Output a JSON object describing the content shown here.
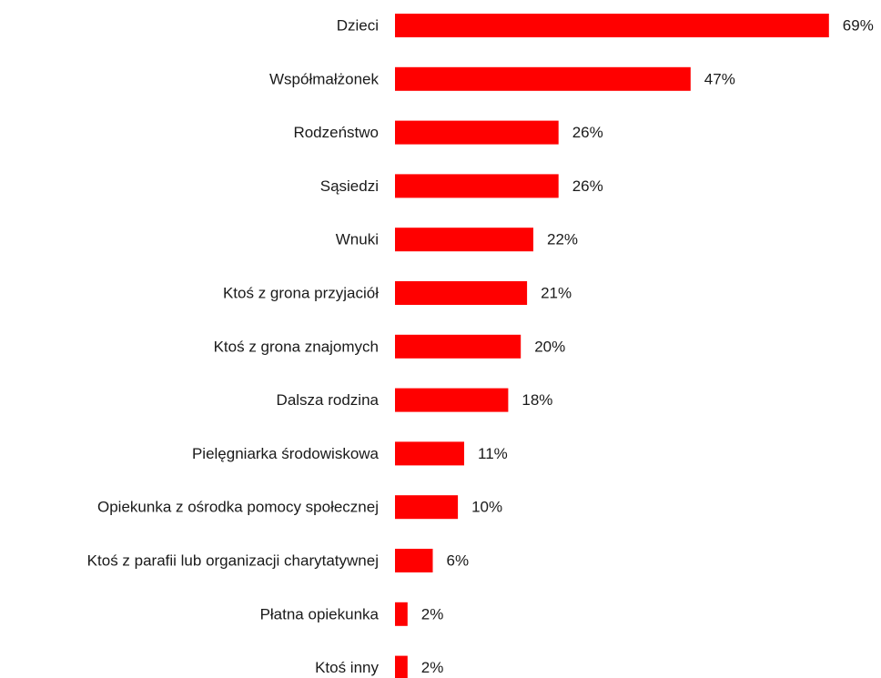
{
  "chart_data": {
    "type": "bar",
    "orientation": "horizontal",
    "categories": [
      "Dzieci",
      "Współmałżonek",
      "Rodzeństwo",
      "Sąsiedzi",
      "Wnuki",
      "Ktoś z grona przyjaciół",
      "Ktoś z grona znajomych",
      "Dalsza rodzina",
      "Pielęgniarka środowiskowa",
      "Opiekunka z ośrodka pomocy społecznej",
      "Ktoś z parafii lub organizacji charytatywnej",
      "Płatna opiekunka",
      "Ktoś inny"
    ],
    "values": [
      69,
      47,
      26,
      26,
      22,
      21,
      20,
      18,
      11,
      10,
      6,
      2,
      2
    ],
    "value_labels": [
      "69%",
      "47%",
      "26%",
      "26%",
      "22%",
      "21%",
      "20%",
      "18%",
      "11%",
      "10%",
      "6%",
      "2%",
      "2%"
    ],
    "unit": "%",
    "bar_color": "#ff0000",
    "grid": false,
    "legend": "none"
  }
}
